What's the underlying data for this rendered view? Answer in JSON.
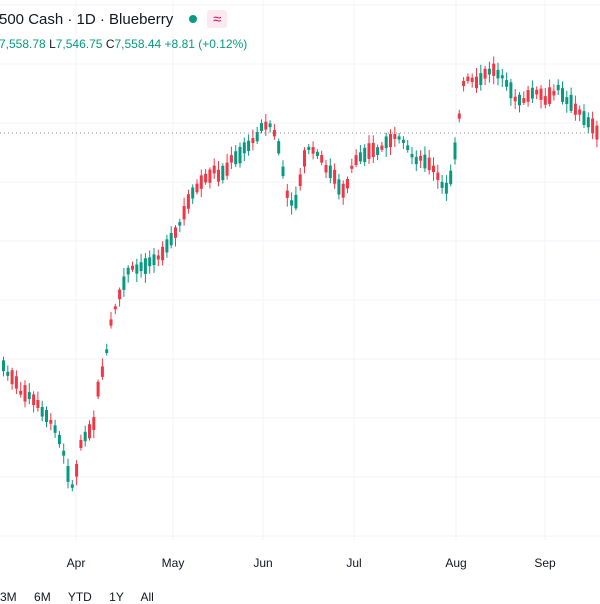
{
  "header": {
    "symbol_line": "500 Cash · 1D · Blueberry",
    "market_icon": "dot-status-icon",
    "wave_icon": "wave-icon"
  },
  "ohlc": {
    "open": "7,558.78",
    "low_label": "L",
    "low": "7,546.75",
    "close_label": "C",
    "close": "7,558.44",
    "change": "+8.81 (+0.12%)"
  },
  "x_axis": {
    "labels": [
      "Apr",
      "May",
      "Jun",
      "Jul",
      "Aug",
      "Sep"
    ]
  },
  "range_bar": {
    "items": [
      "3M",
      "6M",
      "YTD",
      "1Y",
      "All"
    ]
  },
  "colors": {
    "up": "#089981",
    "down": "#f23645",
    "grid": "#f0f3fa"
  },
  "chart_data": {
    "type": "candlestick",
    "price_level": "7,558.44",
    "path_points": [
      [
        0,
        365
      ],
      [
        6,
        372
      ],
      [
        12,
        378
      ],
      [
        18,
        390
      ],
      [
        24,
        395
      ],
      [
        30,
        398
      ],
      [
        36,
        405
      ],
      [
        42,
        415
      ],
      [
        48,
        420
      ],
      [
        54,
        430
      ],
      [
        60,
        445
      ],
      [
        66,
        470
      ],
      [
        70,
        490
      ],
      [
        75,
        470
      ],
      [
        80,
        440
      ],
      [
        86,
        432
      ],
      [
        92,
        425
      ],
      [
        98,
        380
      ],
      [
        104,
        360
      ],
      [
        110,
        320
      ],
      [
        116,
        300
      ],
      [
        122,
        285
      ],
      [
        128,
        268
      ],
      [
        134,
        270
      ],
      [
        140,
        268
      ],
      [
        146,
        264
      ],
      [
        152,
        258
      ],
      [
        158,
        255
      ],
      [
        164,
        250
      ],
      [
        170,
        240
      ],
      [
        176,
        230
      ],
      [
        182,
        215
      ],
      [
        188,
        200
      ],
      [
        194,
        190
      ],
      [
        200,
        182
      ],
      [
        206,
        178
      ],
      [
        212,
        170
      ],
      [
        218,
        175
      ],
      [
        224,
        172
      ],
      [
        230,
        160
      ],
      [
        236,
        158
      ],
      [
        242,
        150
      ],
      [
        248,
        145
      ],
      [
        254,
        138
      ],
      [
        260,
        128
      ],
      [
        266,
        122
      ],
      [
        272,
        130
      ],
      [
        278,
        150
      ],
      [
        284,
        190
      ],
      [
        290,
        205
      ],
      [
        296,
        200
      ],
      [
        302,
        160
      ],
      [
        308,
        148
      ],
      [
        314,
        152
      ],
      [
        320,
        160
      ],
      [
        326,
        170
      ],
      [
        332,
        175
      ],
      [
        338,
        190
      ],
      [
        344,
        190
      ],
      [
        350,
        168
      ],
      [
        356,
        158
      ],
      [
        362,
        154
      ],
      [
        368,
        150
      ],
      [
        374,
        152
      ],
      [
        380,
        148
      ],
      [
        386,
        142
      ],
      [
        392,
        138
      ],
      [
        398,
        140
      ],
      [
        404,
        145
      ],
      [
        410,
        155
      ],
      [
        416,
        160
      ],
      [
        422,
        158
      ],
      [
        428,
        165
      ],
      [
        434,
        172
      ],
      [
        440,
        185
      ],
      [
        446,
        190
      ],
      [
        452,
        165
      ],
      [
        458,
        115
      ],
      [
        462,
        85
      ],
      [
        466,
        78
      ],
      [
        472,
        80
      ],
      [
        478,
        82
      ],
      [
        484,
        75
      ],
      [
        490,
        68
      ],
      [
        496,
        72
      ],
      [
        502,
        80
      ],
      [
        508,
        90
      ],
      [
        514,
        98
      ],
      [
        520,
        100
      ],
      [
        526,
        98
      ],
      [
        532,
        92
      ],
      [
        538,
        95
      ],
      [
        544,
        100
      ],
      [
        550,
        96
      ],
      [
        556,
        88
      ],
      [
        562,
        95
      ],
      [
        568,
        102
      ],
      [
        574,
        110
      ],
      [
        580,
        115
      ],
      [
        586,
        120
      ],
      [
        592,
        128
      ],
      [
        598,
        133
      ]
    ]
  }
}
